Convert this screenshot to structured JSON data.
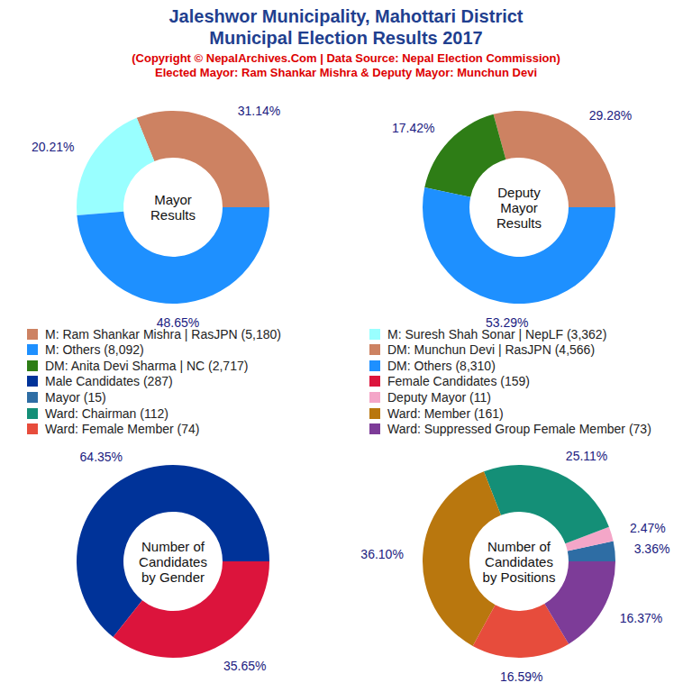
{
  "title": [
    "Jaleshwor Municipality, Mahottari District",
    "Municipal Election Results 2017"
  ],
  "subtitle": [
    "(Copyright © NepalArchives.Com | Data Source: Nepal Election Commission)",
    "Elected Mayor: Ram Shankar Mishra & Deputy Mayor: Munchun Devi"
  ],
  "chart_data": [
    {
      "type": "pie",
      "title": [
        "Mayor",
        "Results"
      ],
      "categories": [
        "M: Ram Shankar Mishra | RasJPN (5,180)",
        "M: Suresh Shah Sonar | NepLF (3,362)",
        "M: Others (8,092)"
      ],
      "values": [
        31.14,
        20.21,
        48.65
      ],
      "value_labels": [
        "31.14%",
        "20.21%",
        "48.65%"
      ],
      "colors": [
        "#cd8262",
        "#99ffff",
        "#1e90ff"
      ],
      "data_labels": true
    },
    {
      "type": "pie",
      "title": [
        "Deputy",
        "Mayor",
        "Results"
      ],
      "categories": [
        "DM: Munchun Devi | RasJPN (4,566)",
        "DM: Anita Devi Sharma | NC (2,717)",
        "DM: Others (8,310)"
      ],
      "values": [
        29.28,
        17.42,
        53.29
      ],
      "value_labels": [
        "29.28%",
        "17.42%",
        "53.29%"
      ],
      "colors": [
        "#cd8262",
        "#2e7d16",
        "#1e90ff"
      ],
      "data_labels": true
    },
    {
      "type": "pie",
      "title": [
        "Number of",
        "Candidates",
        "by Gender"
      ],
      "categories": [
        "Male Candidates (287)",
        "Female Candidates (159)"
      ],
      "values": [
        64.35,
        35.65
      ],
      "value_labels": [
        "64.35%",
        "35.65%"
      ],
      "colors": [
        "#003399",
        "#dc143c"
      ],
      "data_labels": true
    },
    {
      "type": "pie",
      "title": [
        "Number of",
        "Candidates",
        "by Positions"
      ],
      "categories": [
        "Mayor (15)",
        "Deputy Mayor (11)",
        "Ward: Chairman (112)",
        "Ward: Member (161)",
        "Ward: Female Member (74)",
        "Ward: Suppressed Group Female Member (73)"
      ],
      "values": [
        3.36,
        2.47,
        25.11,
        36.1,
        16.59,
        16.37
      ],
      "value_labels": [
        "3.36%",
        "2.47%",
        "25.11%",
        "36.10%",
        "16.59%",
        "16.37%"
      ],
      "colors": [
        "#2e6da4",
        "#f4a6c8",
        "#148f77",
        "#b9770e",
        "#e74c3c",
        "#7d3c98"
      ],
      "data_labels": true
    }
  ]
}
